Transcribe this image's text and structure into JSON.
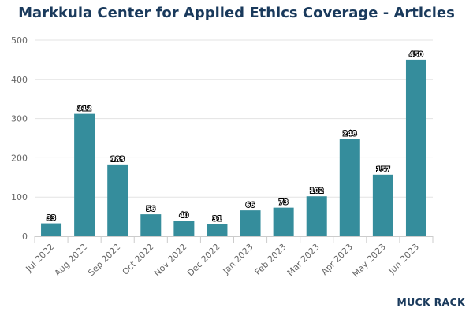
{
  "chart_data": {
    "type": "bar",
    "title": "Markkula Center for Applied Ethics Coverage - Articles",
    "categories": [
      "Jul 2022",
      "Aug 2022",
      "Sep 2022",
      "Oct 2022",
      "Nov 2022",
      "Dec 2022",
      "Jan 2023",
      "Feb 2023",
      "Mar 2023",
      "Apr 2023",
      "May 2023",
      "Jun 2023"
    ],
    "values": [
      33,
      312,
      183,
      56,
      40,
      31,
      66,
      73,
      102,
      248,
      157,
      450
    ],
    "xlabel": "",
    "ylabel": "",
    "ylim": [
      0,
      500
    ],
    "yticks": [
      0,
      100,
      200,
      300,
      400,
      500
    ],
    "grid": true,
    "data_labels": true,
    "bar_color": "#358d9c"
  },
  "branding": {
    "logo_text": "MUCK RACK"
  }
}
